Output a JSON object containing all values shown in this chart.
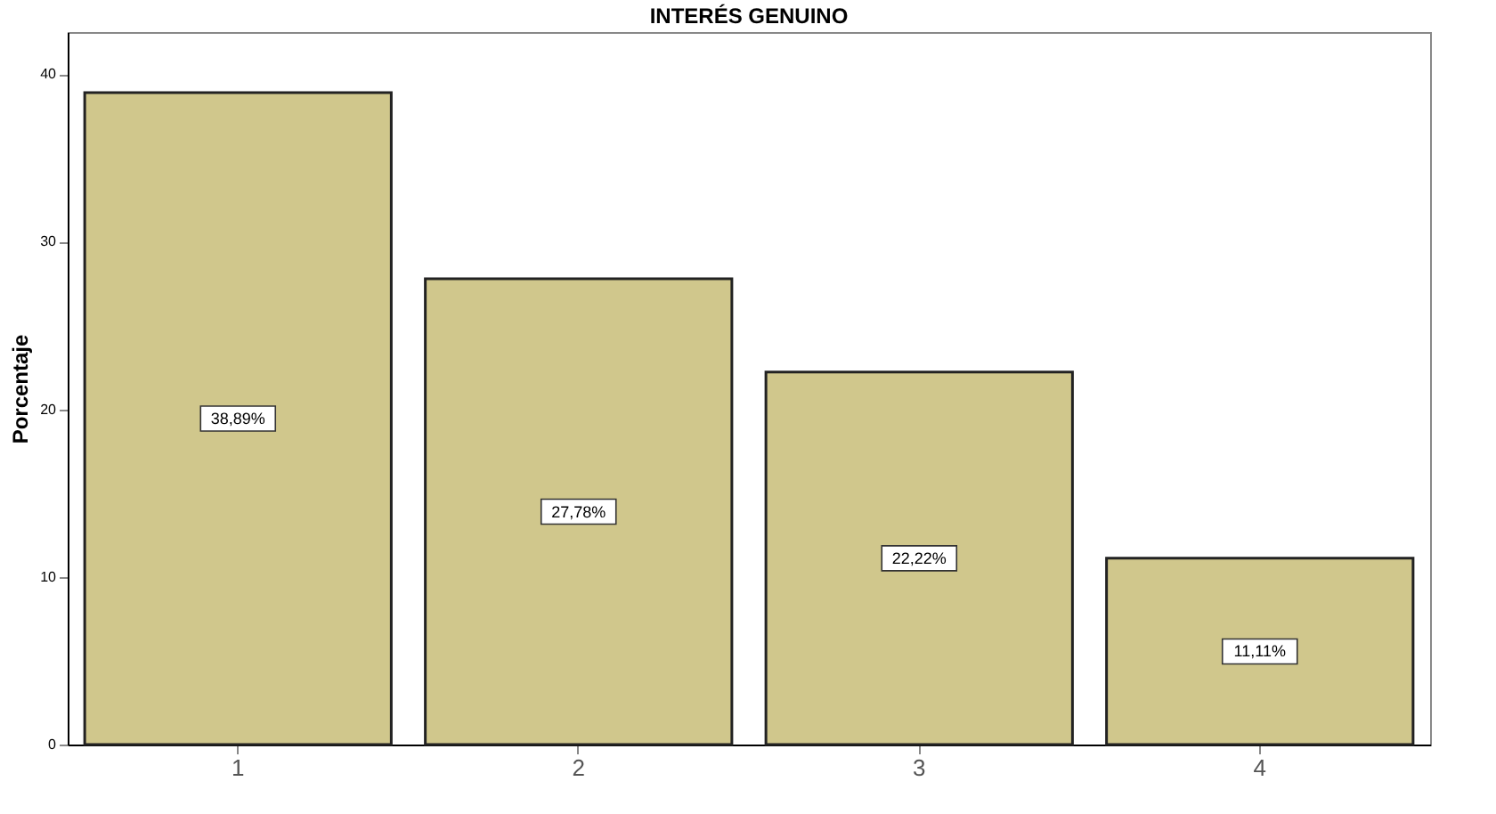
{
  "chart_data": {
    "type": "bar",
    "title": "INTERÉS GENUINO",
    "ylabel": "Porcentaje",
    "categories": [
      "1",
      "2",
      "3",
      "4"
    ],
    "values": [
      38.89,
      27.78,
      22.22,
      11.11
    ],
    "value_labels": [
      "38,89%",
      "27,78%",
      "22,22%",
      "11,11%"
    ],
    "color": "#d0c78c",
    "ylim": [
      0,
      42.5
    ],
    "yticks": [
      0,
      10,
      20,
      30,
      40
    ],
    "grid": false
  }
}
